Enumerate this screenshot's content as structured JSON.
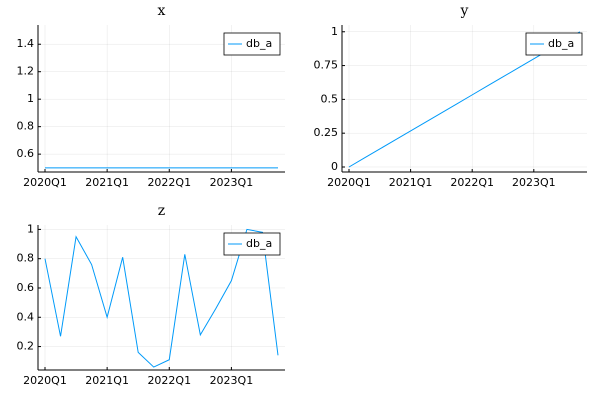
{
  "chart_data": [
    {
      "type": "line",
      "title": "x",
      "categories": [
        "2020Q1",
        null,
        null,
        null,
        "2021Q1",
        null,
        null,
        null,
        "2022Q1",
        null,
        null,
        null,
        "2023Q1",
        null,
        null,
        null
      ],
      "series": [
        {
          "name": "db_a",
          "color": "#009af9",
          "values": [
            0.5,
            0.5,
            0.5,
            0.5,
            0.5,
            0.5,
            0.5,
            0.5,
            0.5,
            0.5,
            0.5,
            0.5,
            0.5,
            0.5,
            0.5,
            0.5
          ]
        }
      ],
      "ylim": [
        0.47,
        1.54
      ],
      "yticks": [
        0.6,
        0.8,
        1.0,
        1.2,
        1.4
      ],
      "grid": true,
      "legend": "top-right"
    },
    {
      "type": "line",
      "title": "y",
      "categories": [
        "2020Q1",
        null,
        null,
        null,
        "2021Q1",
        null,
        null,
        null,
        "2022Q1",
        null,
        null,
        null,
        "2023Q1",
        null,
        null,
        null
      ],
      "series": [
        {
          "name": "db_a",
          "color": "#009af9",
          "values": [
            0,
            0.0667,
            0.1333,
            0.2,
            0.2667,
            0.3333,
            0.4,
            0.4667,
            0.5333,
            0.6,
            0.6667,
            0.7333,
            0.8,
            0.8667,
            0.9333,
            1.0
          ]
        }
      ],
      "ylim": [
        -0.037,
        1.05
      ],
      "yticks": [
        0.0,
        0.25,
        0.5,
        0.75,
        1.0
      ],
      "grid": true,
      "legend": "top-right"
    },
    {
      "type": "line",
      "title": "z",
      "categories": [
        "2020Q1",
        null,
        null,
        null,
        "2021Q1",
        null,
        null,
        null,
        "2022Q1",
        null,
        null,
        null,
        "2023Q1",
        null,
        null,
        null
      ],
      "series": [
        {
          "name": "db_a",
          "color": "#009af9",
          "values": [
            0.8,
            0.27,
            0.95,
            0.76,
            0.4,
            0.81,
            0.16,
            0.06,
            0.11,
            0.83,
            0.28,
            0.46,
            0.65,
            1.0,
            0.98,
            0.14
          ]
        }
      ],
      "ylim": [
        0.04,
        1.03
      ],
      "yticks": [
        0.2,
        0.4,
        0.6,
        0.8,
        1.0
      ],
      "grid": true,
      "legend": "top-right"
    }
  ]
}
